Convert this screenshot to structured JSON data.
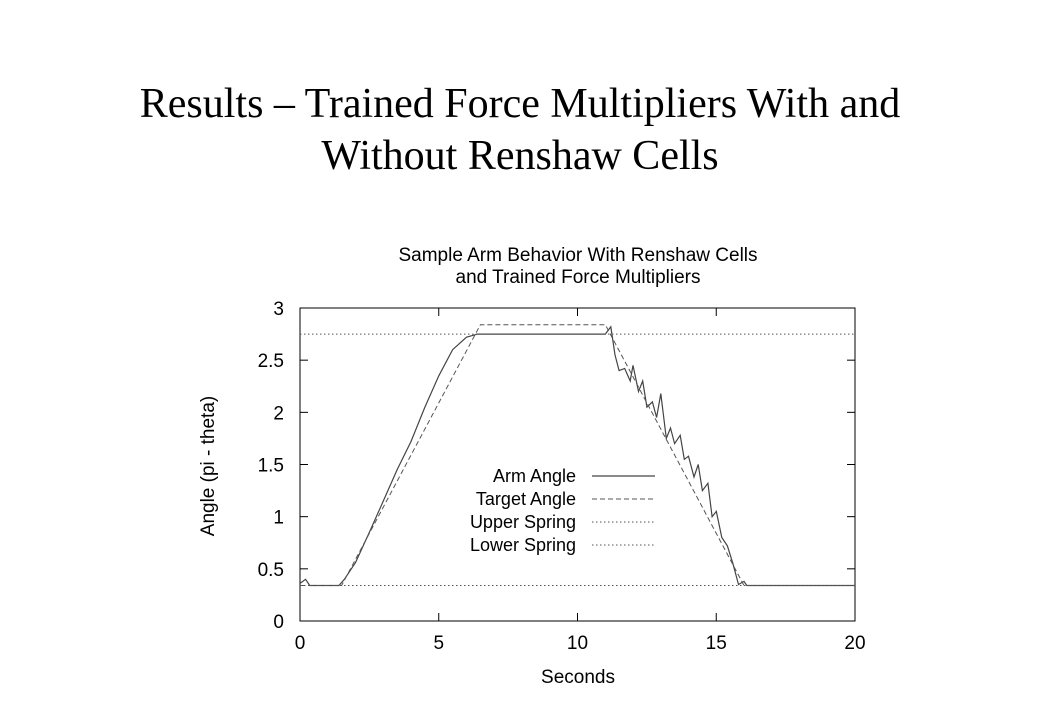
{
  "slide": {
    "title_line1": "Results – Trained Force Multipliers With and",
    "title_line2": "Without Renshaw Cells"
  },
  "chart_data": {
    "type": "line",
    "title_line1": "Sample Arm Behavior With Renshaw Cells",
    "title_line2": "and Trained Force Multipliers",
    "xlabel": "Seconds",
    "ylabel": "Angle (pi - theta)",
    "xlim": [
      0,
      20
    ],
    "ylim": [
      0,
      3
    ],
    "xticks": [
      0,
      5,
      10,
      15,
      20
    ],
    "yticks": [
      0,
      0.5,
      1,
      1.5,
      2,
      2.5,
      3
    ],
    "ytick_labels": [
      "0",
      "0.5",
      "1",
      "1.5",
      "2",
      "2.5",
      "3"
    ],
    "grid": false,
    "legend_position": "center",
    "series": [
      {
        "name": "Arm Angle",
        "style": "solid",
        "x": [
          0,
          0.2,
          0.35,
          0.5,
          1.4,
          1.6,
          2.0,
          2.5,
          3.0,
          3.5,
          4.0,
          4.5,
          5.0,
          5.5,
          6.0,
          6.4,
          11.0,
          11.2,
          11.35,
          11.5,
          11.7,
          11.9,
          12.0,
          12.2,
          12.35,
          12.5,
          12.7,
          12.85,
          13.0,
          13.2,
          13.35,
          13.5,
          13.7,
          13.85,
          14.0,
          14.2,
          14.35,
          14.5,
          14.7,
          14.85,
          15.0,
          15.2,
          15.4,
          15.6,
          15.8,
          16.0,
          16.1,
          20
        ],
        "y": [
          0.36,
          0.4,
          0.34,
          0.34,
          0.34,
          0.4,
          0.56,
          0.85,
          1.15,
          1.45,
          1.72,
          2.05,
          2.35,
          2.6,
          2.72,
          2.75,
          2.75,
          2.82,
          2.55,
          2.4,
          2.42,
          2.3,
          2.45,
          2.2,
          2.3,
          2.05,
          2.1,
          1.95,
          2.18,
          1.75,
          1.85,
          1.7,
          1.78,
          1.55,
          1.58,
          1.38,
          1.5,
          1.25,
          1.32,
          1.0,
          1.05,
          0.8,
          0.72,
          0.55,
          0.35,
          0.38,
          0.34,
          0.34
        ]
      },
      {
        "name": "Target Angle",
        "style": "dashed",
        "x": [
          0,
          1.5,
          6.5,
          11.0,
          16.0,
          20
        ],
        "y": [
          0.34,
          0.34,
          2.84,
          2.84,
          0.34,
          0.34
        ]
      },
      {
        "name": "Upper Spring",
        "style": "dotted",
        "x": [
          0,
          20
        ],
        "y": [
          0.34,
          0.34
        ]
      },
      {
        "name": "Lower Spring",
        "style": "dotted",
        "x": [
          0,
          20
        ],
        "y": [
          2.75,
          2.75
        ]
      }
    ]
  }
}
